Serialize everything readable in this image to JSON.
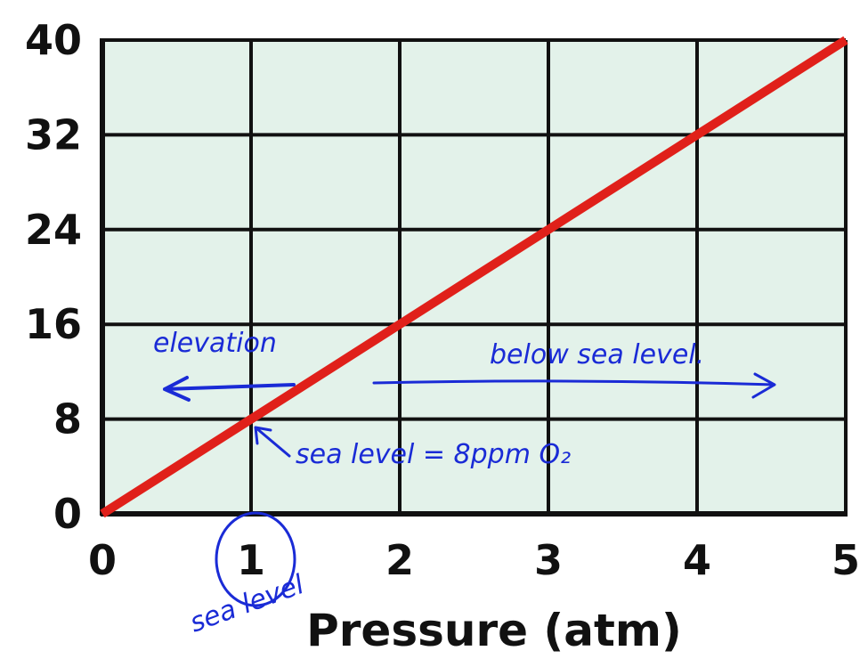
{
  "chart_data": {
    "type": "line",
    "title": "",
    "xlabel": "Pressure (atm)",
    "ylabel": "",
    "xlim": [
      0,
      5
    ],
    "ylim": [
      0,
      40
    ],
    "x_ticks": [
      "0",
      "1",
      "2",
      "3",
      "4",
      "5"
    ],
    "y_ticks": [
      "0",
      "8",
      "16",
      "24",
      "32",
      "40"
    ],
    "grid": true,
    "series": [
      {
        "x": [
          0,
          1,
          2,
          3,
          4,
          5
        ],
        "y": [
          0,
          8,
          16,
          24,
          32,
          40
        ]
      }
    ],
    "annotations": {
      "elevation": "elevation",
      "below_sea_level": "below sea level.",
      "sea_level_point": "sea level = 8ppm O₂",
      "sea_level_tick": "sea level"
    }
  },
  "colors": {
    "plot_background": "#e3f2ea",
    "grid": "#111111",
    "line": "#e0201a",
    "annotation": "#1a2bd6"
  }
}
